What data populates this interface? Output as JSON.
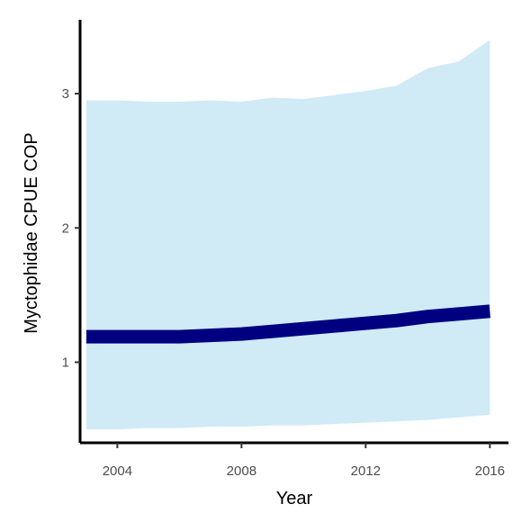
{
  "chart_data": {
    "type": "line",
    "xlabel": "Year",
    "ylabel": "Myctophidae  CPUE COP",
    "xlim": [
      2002.8,
      2016.6
    ],
    "ylim": [
      0.4,
      3.55
    ],
    "x_ticks": [
      2004,
      2008,
      2012,
      2016
    ],
    "y_ticks": [
      1,
      2,
      3
    ],
    "grid": false,
    "series": [
      {
        "x": [
          2003,
          2004,
          2005,
          2006,
          2007,
          2008,
          2009,
          2010,
          2011,
          2012,
          2013,
          2014,
          2015,
          2016
        ],
        "y": [
          1.19,
          1.19,
          1.19,
          1.19,
          1.2,
          1.21,
          1.23,
          1.25,
          1.27,
          1.29,
          1.31,
          1.34,
          1.36,
          1.38
        ],
        "lower": [
          0.5,
          0.5,
          0.51,
          0.51,
          0.52,
          0.52,
          0.53,
          0.53,
          0.54,
          0.55,
          0.56,
          0.57,
          0.59,
          0.61
        ],
        "upper": [
          2.95,
          2.95,
          2.94,
          2.94,
          2.95,
          2.94,
          2.97,
          2.96,
          2.99,
          3.02,
          3.06,
          3.19,
          3.24,
          3.4
        ],
        "line_color": "#000080",
        "band_color": "#d0eaf6"
      }
    ]
  }
}
